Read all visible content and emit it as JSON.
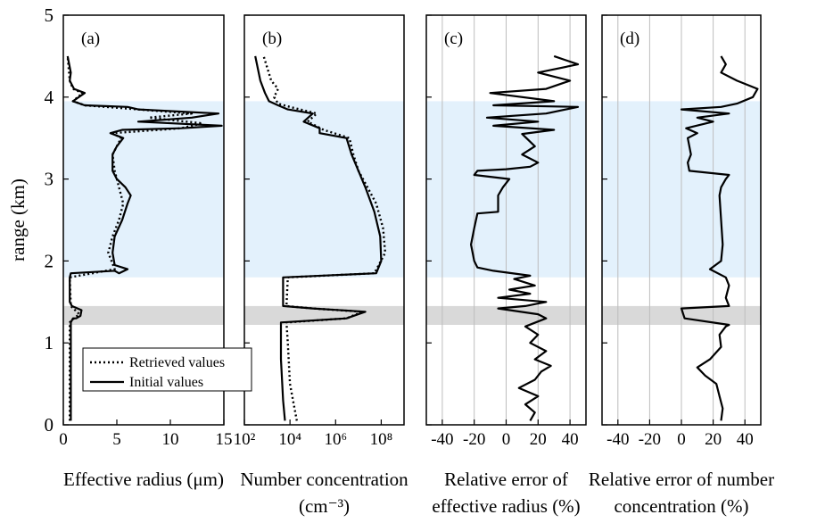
{
  "chart_data": {
    "type": "line",
    "y_axis": {
      "label": "range (km)",
      "range": [
        0,
        5
      ],
      "ticks": [
        "0",
        "1",
        "2",
        "3",
        "4",
        "5"
      ]
    },
    "shaded_bands": [
      {
        "color": "#e3f1fc",
        "from_km": 1.8,
        "to_km": 3.95
      },
      {
        "color": "#d9d9d9",
        "from_km": 1.22,
        "to_km": 1.45
      }
    ],
    "legend": [
      {
        "label": "Retrieved values",
        "style": "dotted"
      },
      {
        "label": "Initial values",
        "style": "solid"
      }
    ],
    "panels": [
      {
        "id": "a",
        "label": "(a)",
        "xlabel": "Effective radius (μm)",
        "x_range": [
          0,
          15
        ],
        "x_ticks": [
          "0",
          "5",
          "10",
          "15"
        ],
        "series": [
          {
            "name": "Initial values",
            "style": "solid",
            "points": [
              [
                0.7,
                0.05
              ],
              [
                0.7,
                1.25
              ],
              [
                0.9,
                1.3
              ],
              [
                1.2,
                1.3
              ],
              [
                1.6,
                1.33
              ],
              [
                1.7,
                1.4
              ],
              [
                0.8,
                1.45
              ],
              [
                0.6,
                1.5
              ],
              [
                0.6,
                1.8
              ],
              [
                0.7,
                1.85
              ],
              [
                4.8,
                1.88
              ],
              [
                5.2,
                1.85
              ],
              [
                6,
                1.9
              ],
              [
                4.8,
                1.95
              ],
              [
                4.6,
                2.1
              ],
              [
                4.8,
                2.3
              ],
              [
                5.5,
                2.5
              ],
              [
                6,
                2.7
              ],
              [
                6.3,
                2.8
              ],
              [
                5.8,
                2.9
              ],
              [
                5,
                3.0
              ],
              [
                4.6,
                3.1
              ],
              [
                4.6,
                3.3
              ],
              [
                5,
                3.4
              ],
              [
                5.6,
                3.5
              ],
              [
                4.4,
                3.56
              ],
              [
                5.5,
                3.6
              ],
              [
                11,
                3.62
              ],
              [
                14.8,
                3.65
              ],
              [
                7,
                3.7
              ],
              [
                12,
                3.75
              ],
              [
                14.5,
                3.8
              ],
              [
                7,
                3.85
              ],
              [
                6,
                3.88
              ],
              [
                2,
                3.9
              ],
              [
                0.9,
                3.95
              ],
              [
                2,
                4.05
              ],
              [
                1,
                4.1
              ],
              [
                0.6,
                4.2
              ],
              [
                0.7,
                4.3
              ],
              [
                0.4,
                4.5
              ]
            ]
          },
          {
            "name": "Retrieved values",
            "style": "dotted",
            "points": [
              [
                0.6,
                0.05
              ],
              [
                0.6,
                1.25
              ],
              [
                1,
                1.3
              ],
              [
                1.5,
                1.35
              ],
              [
                0.7,
                1.45
              ],
              [
                0.6,
                1.8
              ],
              [
                4.8,
                1.9
              ],
              [
                4.2,
                2.1
              ],
              [
                4.6,
                2.3
              ],
              [
                5.2,
                2.5
              ],
              [
                5.6,
                2.7
              ],
              [
                5.2,
                2.9
              ],
              [
                4.8,
                3.1
              ],
              [
                4.6,
                3.3
              ],
              [
                5.4,
                3.5
              ],
              [
                4.6,
                3.56
              ],
              [
                11,
                3.62
              ],
              [
                13,
                3.68
              ],
              [
                8,
                3.75
              ],
              [
                12,
                3.8
              ],
              [
                6,
                3.86
              ],
              [
                2,
                3.9
              ],
              [
                0.9,
                3.95
              ],
              [
                1.8,
                4.05
              ],
              [
                0.9,
                4.1
              ],
              [
                0.6,
                4.2
              ],
              [
                0.4,
                4.5
              ]
            ]
          }
        ]
      },
      {
        "id": "b",
        "label": "(b)",
        "xlabel": "Number concentration",
        "xlabel2": "(cm⁻³)",
        "x_scale": "log",
        "x_range": [
          100,
          1000000000
        ],
        "x_ticks": [
          {
            "label": "10²",
            "value": 100
          },
          {
            "label": "10⁴",
            "value": 10000
          },
          {
            "label": "10⁶",
            "value": 1000000
          },
          {
            "label": "10⁸",
            "value": 100000000
          }
        ],
        "series": [
          {
            "name": "Initial values",
            "style": "solid",
            "points": [
              [
                6000,
                0.05
              ],
              [
                5000,
                0.3
              ],
              [
                4000,
                0.8
              ],
              [
                4000,
                1.25
              ],
              [
                3000000,
                1.3
              ],
              [
                20000000,
                1.38
              ],
              [
                100000,
                1.42
              ],
              [
                5000,
                1.45
              ],
              [
                5000,
                1.8
              ],
              [
                60000000,
                1.85
              ],
              [
                100000000,
                2.0
              ],
              [
                90000000,
                2.3
              ],
              [
                50000000,
                2.6
              ],
              [
                20000000,
                2.9
              ],
              [
                10000000,
                3.1
              ],
              [
                5000000,
                3.3
              ],
              [
                3000000,
                3.5
              ],
              [
                200000,
                3.56
              ],
              [
                200000,
                3.62
              ],
              [
                40000,
                3.7
              ],
              [
                100000,
                3.8
              ],
              [
                8000,
                3.85
              ],
              [
                3000,
                3.9
              ],
              [
                1200,
                3.95
              ],
              [
                800,
                4.05
              ],
              [
                500,
                4.2
              ],
              [
                300,
                4.5
              ]
            ]
          },
          {
            "name": "Retrieved values",
            "style": "dotted",
            "points": [
              [
                20000,
                0.05
              ],
              [
                10000,
                0.5
              ],
              [
                8000,
                1.0
              ],
              [
                7000,
                1.25
              ],
              [
                3000000,
                1.3
              ],
              [
                15000000,
                1.38
              ],
              [
                100000,
                1.42
              ],
              [
                7000,
                1.45
              ],
              [
                8000,
                1.8
              ],
              [
                50000000,
                1.85
              ],
              [
                150000000,
                2.1
              ],
              [
                120000000,
                2.4
              ],
              [
                60000000,
                2.7
              ],
              [
                25000000,
                2.9
              ],
              [
                10000000,
                3.1
              ],
              [
                6000000,
                3.3
              ],
              [
                4000000,
                3.5
              ],
              [
                300000,
                3.6
              ],
              [
                60000,
                3.7
              ],
              [
                150000,
                3.8
              ],
              [
                10000,
                3.88
              ],
              [
                3000,
                3.92
              ],
              [
                2000,
                4.0
              ],
              [
                3000,
                4.1
              ],
              [
                1500,
                4.2
              ],
              [
                700,
                4.5
              ]
            ]
          }
        ]
      },
      {
        "id": "c",
        "label": "(c)",
        "xlabel": "Relative error of",
        "xlabel2": "effective radius (%)",
        "x_range": [
          -50,
          50
        ],
        "x_ticks": [
          "-40",
          "-20",
          "0",
          "20",
          "40"
        ],
        "gridlines": [
          -40,
          -20,
          0,
          20,
          40
        ],
        "series": [
          {
            "name": "Initial values",
            "style": "solid",
            "points": [
              [
                15,
                0.05
              ],
              [
                18,
                0.15
              ],
              [
                12,
                0.25
              ],
              [
                20,
                0.35
              ],
              [
                8,
                0.45
              ],
              [
                18,
                0.55
              ],
              [
                22,
                0.65
              ],
              [
                28,
                0.72
              ],
              [
                18,
                0.8
              ],
              [
                25,
                0.9
              ],
              [
                15,
                1.0
              ],
              [
                20,
                1.1
              ],
              [
                12,
                1.2
              ],
              [
                25,
                1.3
              ],
              [
                20,
                1.35
              ],
              [
                -5,
                1.42
              ],
              [
                12,
                1.45
              ],
              [
                25,
                1.5
              ],
              [
                -5,
                1.55
              ],
              [
                15,
                1.6
              ],
              [
                2,
                1.65
              ],
              [
                18,
                1.7
              ],
              [
                5,
                1.78
              ],
              [
                15,
                1.82
              ],
              [
                -8,
                1.88
              ],
              [
                -18,
                1.92
              ],
              [
                -20,
                2.0
              ],
              [
                -22,
                2.2
              ],
              [
                -20,
                2.4
              ],
              [
                -18,
                2.58
              ],
              [
                -5,
                2.6
              ],
              [
                -5,
                2.8
              ],
              [
                -2,
                2.9
              ],
              [
                2,
                3.0
              ],
              [
                -20,
                3.05
              ],
              [
                -18,
                3.1
              ],
              [
                0,
                3.12
              ],
              [
                15,
                3.15
              ],
              [
                20,
                3.2
              ],
              [
                10,
                3.3
              ],
              [
                18,
                3.4
              ],
              [
                10,
                3.55
              ],
              [
                30,
                3.6
              ],
              [
                -8,
                3.65
              ],
              [
                20,
                3.7
              ],
              [
                -12,
                3.75
              ],
              [
                25,
                3.8
              ],
              [
                45,
                3.88
              ],
              [
                -8,
                3.9
              ],
              [
                30,
                3.95
              ],
              [
                -10,
                4.05
              ],
              [
                25,
                4.1
              ],
              [
                40,
                4.2
              ],
              [
                20,
                4.3
              ],
              [
                45,
                4.4
              ],
              [
                30,
                4.5
              ]
            ]
          }
        ]
      },
      {
        "id": "d",
        "label": "(d)",
        "xlabel": "Relative error of number",
        "xlabel2": "concentration (%)",
        "x_range": [
          -50,
          50
        ],
        "x_ticks": [
          "-40",
          "-20",
          "0",
          "20",
          "40"
        ],
        "gridlines": [
          -40,
          -20,
          0,
          20,
          40
        ],
        "series": [
          {
            "name": "Initial values",
            "style": "solid",
            "points": [
              [
                25,
                0.05
              ],
              [
                26,
                0.2
              ],
              [
                24,
                0.35
              ],
              [
                22,
                0.5
              ],
              [
                15,
                0.6
              ],
              [
                10,
                0.7
              ],
              [
                18,
                0.8
              ],
              [
                25,
                0.95
              ],
              [
                24,
                1.1
              ],
              [
                28,
                1.2
              ],
              [
                30,
                1.22
              ],
              [
                2,
                1.3
              ],
              [
                0,
                1.42
              ],
              [
                30,
                1.45
              ],
              [
                28,
                1.55
              ],
              [
                30,
                1.7
              ],
              [
                28,
                1.8
              ],
              [
                18,
                1.9
              ],
              [
                25,
                2.0
              ],
              [
                26,
                2.2
              ],
              [
                25,
                2.5
              ],
              [
                24,
                2.8
              ],
              [
                25,
                2.9
              ],
              [
                28,
                3.0
              ],
              [
                30,
                3.05
              ],
              [
                5,
                3.1
              ],
              [
                4,
                3.2
              ],
              [
                6,
                3.3
              ],
              [
                4,
                3.5
              ],
              [
                10,
                3.56
              ],
              [
                3,
                3.62
              ],
              [
                20,
                3.7
              ],
              [
                10,
                3.75
              ],
              [
                30,
                3.8
              ],
              [
                0,
                3.85
              ],
              [
                25,
                3.88
              ],
              [
                35,
                3.92
              ],
              [
                45,
                4.0
              ],
              [
                48,
                4.1
              ],
              [
                35,
                4.2
              ],
              [
                25,
                4.3
              ],
              [
                28,
                4.4
              ],
              [
                25,
                4.5
              ]
            ]
          }
        ]
      }
    ]
  }
}
